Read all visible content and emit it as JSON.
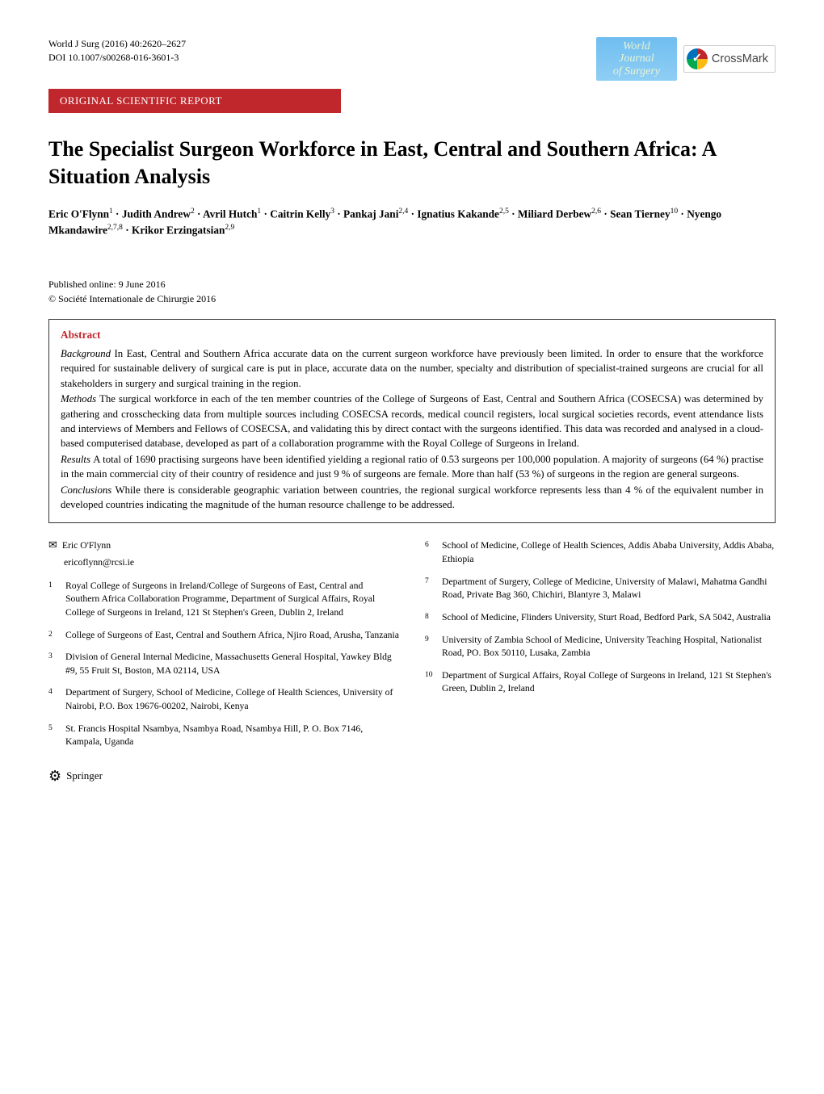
{
  "header": {
    "journal_citation": "World J Surg (2016) 40:2620–2627",
    "doi": "DOI 10.1007/s00268-016-3601-3",
    "journal_badge_line1": "World Journal",
    "journal_badge_line2": "of Surgery",
    "crossmark_label": "CrossMark"
  },
  "section_banner": "ORIGINAL SCIENTIFIC REPORT",
  "title": "The Specialist Surgeon Workforce in East, Central and Southern Africa: A Situation Analysis",
  "authors_html": "Eric O'Flynn<sup>1</sup> · Judith Andrew<sup>2</sup> · Avril Hutch<sup>1</sup> · Caitrin Kelly<sup>3</sup> · Pankaj Jani<sup>2,4</sup> · Ignatius Kakande<sup>2,5</sup> · Miliard Derbew<sup>2,6</sup> · Sean Tierney<sup>10</sup> · Nyengo Mkandawire<sup>2,7,8</sup> · Krikor Erzingatsian<sup>2,9</sup>",
  "published": "Published online: 9 June 2016",
  "copyright": "© Société Internationale de Chirurgie 2016",
  "abstract": {
    "heading": "Abstract",
    "sections": [
      {
        "label": "Background",
        "text": "In East, Central and Southern Africa accurate data on the current surgeon workforce have previously been limited. In order to ensure that the workforce required for sustainable delivery of surgical care is put in place, accurate data on the number, specialty and distribution of specialist-trained surgeons are crucial for all stakeholders in surgery and surgical training in the region."
      },
      {
        "label": "Methods",
        "text": "The surgical workforce in each of the ten member countries of the College of Surgeons of East, Central and Southern Africa (COSECSA) was determined by gathering and crosschecking data from multiple sources including COSECSA records, medical council registers, local surgical societies records, event attendance lists and interviews of Members and Fellows of COSECSA, and validating this by direct contact with the surgeons identified. This data was recorded and analysed in a cloud-based computerised database, developed as part of a collaboration programme with the Royal College of Surgeons in Ireland."
      },
      {
        "label": "Results",
        "text": "A total of 1690 practising surgeons have been identified yielding a regional ratio of 0.53 surgeons per 100,000 population. A majority of surgeons (64 %) practise in the main commercial city of their country of residence and just 9 % of surgeons are female. More than half (53 %) of surgeons in the region are general surgeons."
      },
      {
        "label": "Conclusions",
        "text": "While there is considerable geographic variation between countries, the regional surgical workforce represents less than 4 % of the equivalent number in developed countries indicating the magnitude of the human resource challenge to be addressed."
      }
    ]
  },
  "corresponding": {
    "name": "Eric O'Flynn",
    "email": "ericoflynn@rcsi.ie"
  },
  "affiliations_left": [
    {
      "n": "1",
      "text": "Royal College of Surgeons in Ireland/College of Surgeons of East, Central and Southern Africa Collaboration Programme, Department of Surgical Affairs, Royal College of Surgeons in Ireland, 121 St Stephen's Green, Dublin 2, Ireland"
    },
    {
      "n": "2",
      "text": "College of Surgeons of East, Central and Southern Africa, Njiro Road, Arusha, Tanzania"
    },
    {
      "n": "3",
      "text": "Division of General Internal Medicine, Massachusetts General Hospital, Yawkey Bldg #9, 55 Fruit St, Boston, MA 02114, USA"
    },
    {
      "n": "4",
      "text": "Department of Surgery, School of Medicine, College of Health Sciences, University of Nairobi, P.O. Box 19676-00202, Nairobi, Kenya"
    },
    {
      "n": "5",
      "text": "St. Francis Hospital Nsambya, Nsambya Road, Nsambya Hill, P. O. Box 7146, Kampala, Uganda"
    }
  ],
  "affiliations_right": [
    {
      "n": "6",
      "text": "School of Medicine, College of Health Sciences, Addis Ababa University, Addis Ababa, Ethiopia"
    },
    {
      "n": "7",
      "text": "Department of Surgery, College of Medicine, University of Malawi, Mahatma Gandhi Road, Private Bag 360, Chichiri, Blantyre 3, Malawi"
    },
    {
      "n": "8",
      "text": "School of Medicine, Flinders University, Sturt Road, Bedford Park, SA 5042, Australia"
    },
    {
      "n": "9",
      "text": "University of Zambia School of Medicine, University Teaching Hospital, Nationalist Road, PO. Box 50110, Lusaka, Zambia"
    },
    {
      "n": "10",
      "text": "Department of Surgical Affairs, Royal College of Surgeons in Ireland, 121 St Stephen's Green, Dublin 2, Ireland"
    }
  ],
  "footer": {
    "publisher": "Springer"
  },
  "colors": {
    "accent_red": "#c0272d",
    "badge_blue_top": "#6fbef0",
    "badge_blue_bottom": "#8fcef5",
    "text": "#000000",
    "background": "#ffffff"
  }
}
